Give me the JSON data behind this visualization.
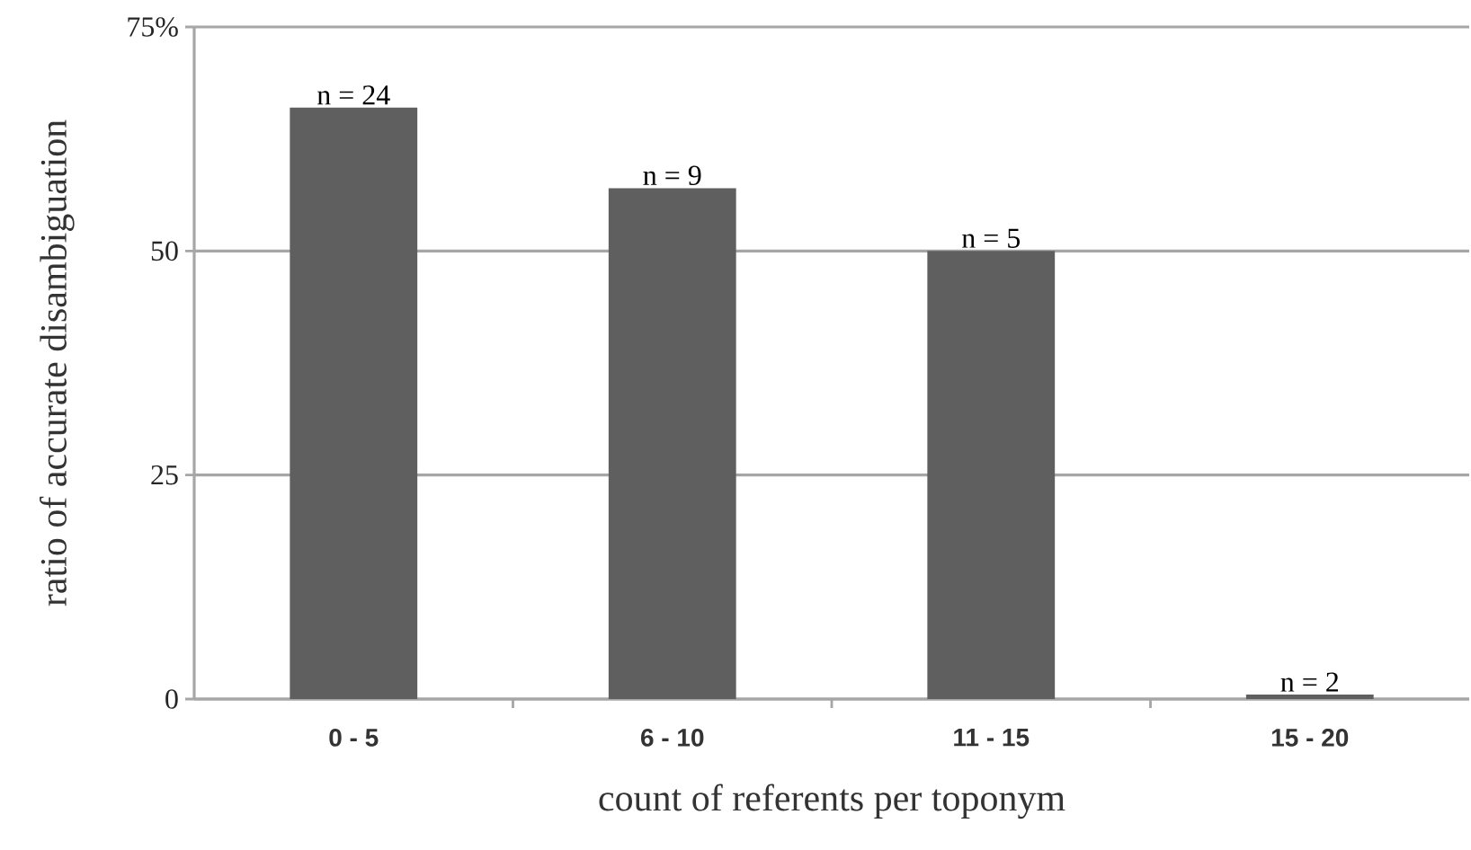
{
  "chart_data": {
    "type": "bar",
    "xlabel": "count of referents per toponym",
    "ylabel": "ratio of accurate disambiguation",
    "categories": [
      "0 - 5",
      "6 - 10",
      "11 - 15",
      "15 - 20"
    ],
    "values": [
      66,
      57,
      50,
      0.5
    ],
    "color": "#5f5f5f",
    "ylim": [
      0,
      75
    ],
    "yticks": [
      0,
      25,
      50,
      {
        "value": 75,
        "label": "75%"
      }
    ],
    "grid": "y",
    "annotations": [
      {
        "text": "n = 24",
        "x": "0 - 5",
        "y": 66
      },
      {
        "text": "n = 9",
        "x": "6 - 10",
        "y": 57
      },
      {
        "text": "n = 5",
        "x": "11 - 15",
        "y": 50
      },
      {
        "text": "n = 2",
        "x": "15 - 20",
        "y": 0.5
      }
    ]
  }
}
